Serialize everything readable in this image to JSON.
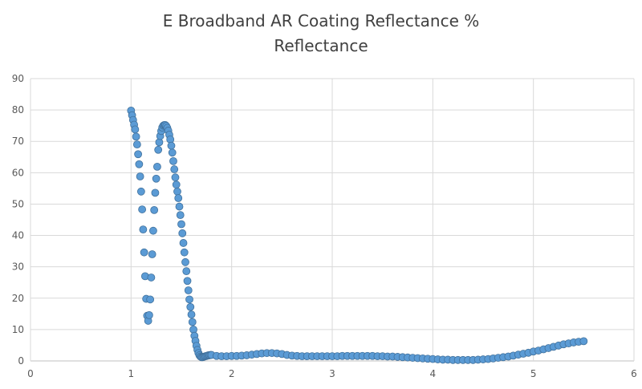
{
  "chart_data": {
    "type": "scatter",
    "title": "E Broadband AR Coating Reflectance %",
    "subtitle": "Reflectance",
    "xlabel": "",
    "ylabel": "",
    "xlim": [
      0,
      6
    ],
    "ylim": [
      0,
      90
    ],
    "xticks": [
      0,
      1,
      2,
      3,
      4,
      5,
      6
    ],
    "yticks": [
      0,
      10,
      20,
      30,
      40,
      50,
      60,
      70,
      80,
      90
    ],
    "grid": true,
    "legend": "none",
    "marker_color": "#5B9BD5",
    "marker_edge_color": "#41719C",
    "series": [
      {
        "x": [
          1.0,
          1.01,
          1.02,
          1.03,
          1.04,
          1.05,
          1.06,
          1.07,
          1.08,
          1.09,
          1.1,
          1.11,
          1.12,
          1.13,
          1.14,
          1.15,
          1.16,
          1.17,
          1.18,
          1.19,
          1.2,
          1.21,
          1.22,
          1.23,
          1.24,
          1.25,
          1.26,
          1.27,
          1.28,
          1.29,
          1.3,
          1.31,
          1.32,
          1.33,
          1.34,
          1.35,
          1.36,
          1.37,
          1.38,
          1.39,
          1.4,
          1.41,
          1.42,
          1.43,
          1.44,
          1.45,
          1.46,
          1.47,
          1.48,
          1.49,
          1.5,
          1.51,
          1.52,
          1.53,
          1.54,
          1.55,
          1.56,
          1.57,
          1.58,
          1.59,
          1.6,
          1.61,
          1.62,
          1.63,
          1.64,
          1.65,
          1.66,
          1.67,
          1.68,
          1.69,
          1.7,
          1.71,
          1.72,
          1.73,
          1.74,
          1.75,
          1.76,
          1.77,
          1.78,
          1.79,
          1.8,
          1.85,
          1.9,
          1.95,
          2.0,
          2.05,
          2.1,
          2.15,
          2.2,
          2.25,
          2.3,
          2.35,
          2.4,
          2.45,
          2.5,
          2.55,
          2.6,
          2.65,
          2.7,
          2.75,
          2.8,
          2.85,
          2.9,
          2.95,
          3.0,
          3.05,
          3.1,
          3.15,
          3.2,
          3.25,
          3.3,
          3.35,
          3.4,
          3.45,
          3.5,
          3.55,
          3.6,
          3.65,
          3.7,
          3.75,
          3.8,
          3.85,
          3.9,
          3.95,
          4.0,
          4.05,
          4.1,
          4.15,
          4.2,
          4.25,
          4.3,
          4.35,
          4.4,
          4.45,
          4.5,
          4.55,
          4.6,
          4.65,
          4.7,
          4.75,
          4.8,
          4.85,
          4.9,
          4.95,
          5.0,
          5.05,
          5.1,
          5.15,
          5.2,
          5.25,
          5.3,
          5.35,
          5.4,
          5.45,
          5.5
        ],
        "y": [
          79.8,
          78.3,
          76.8,
          75.3,
          73.8,
          71.5,
          69.0,
          65.9,
          62.7,
          58.8,
          54.0,
          48.3,
          41.9,
          34.6,
          27.0,
          19.8,
          14.4,
          12.8,
          14.6,
          19.6,
          26.6,
          34.0,
          41.5,
          48.1,
          53.6,
          58.1,
          61.9,
          67.3,
          69.7,
          71.7,
          73.3,
          74.4,
          75.0,
          75.2,
          75.2,
          74.9,
          74.3,
          73.4,
          72.1,
          70.6,
          68.6,
          66.4,
          63.7,
          61.1,
          58.5,
          56.2,
          54.0,
          51.9,
          49.2,
          46.5,
          43.6,
          40.7,
          37.6,
          34.6,
          31.5,
          28.6,
          25.5,
          22.5,
          19.6,
          17.2,
          14.8,
          12.4,
          10.0,
          8.0,
          6.4,
          4.8,
          3.5,
          2.5,
          1.8,
          1.4,
          1.2,
          1.2,
          1.3,
          1.4,
          1.5,
          1.6,
          1.7,
          1.8,
          1.8,
          1.9,
          1.9,
          1.6,
          1.5,
          1.5,
          1.6,
          1.6,
          1.7,
          1.8,
          2.0,
          2.2,
          2.4,
          2.5,
          2.5,
          2.4,
          2.2,
          1.9,
          1.7,
          1.6,
          1.5,
          1.5,
          1.5,
          1.5,
          1.5,
          1.5,
          1.5,
          1.5,
          1.6,
          1.6,
          1.6,
          1.6,
          1.6,
          1.6,
          1.6,
          1.5,
          1.5,
          1.4,
          1.4,
          1.3,
          1.2,
          1.1,
          1.0,
          0.9,
          0.8,
          0.7,
          0.6,
          0.5,
          0.4,
          0.4,
          0.3,
          0.3,
          0.3,
          0.3,
          0.3,
          0.4,
          0.5,
          0.6,
          0.8,
          1.0,
          1.2,
          1.4,
          1.7,
          2.0,
          2.3,
          2.6,
          3.0,
          3.3,
          3.7,
          4.1,
          4.5,
          4.9,
          5.3,
          5.6,
          5.9,
          6.1,
          6.3
        ]
      }
    ]
  }
}
